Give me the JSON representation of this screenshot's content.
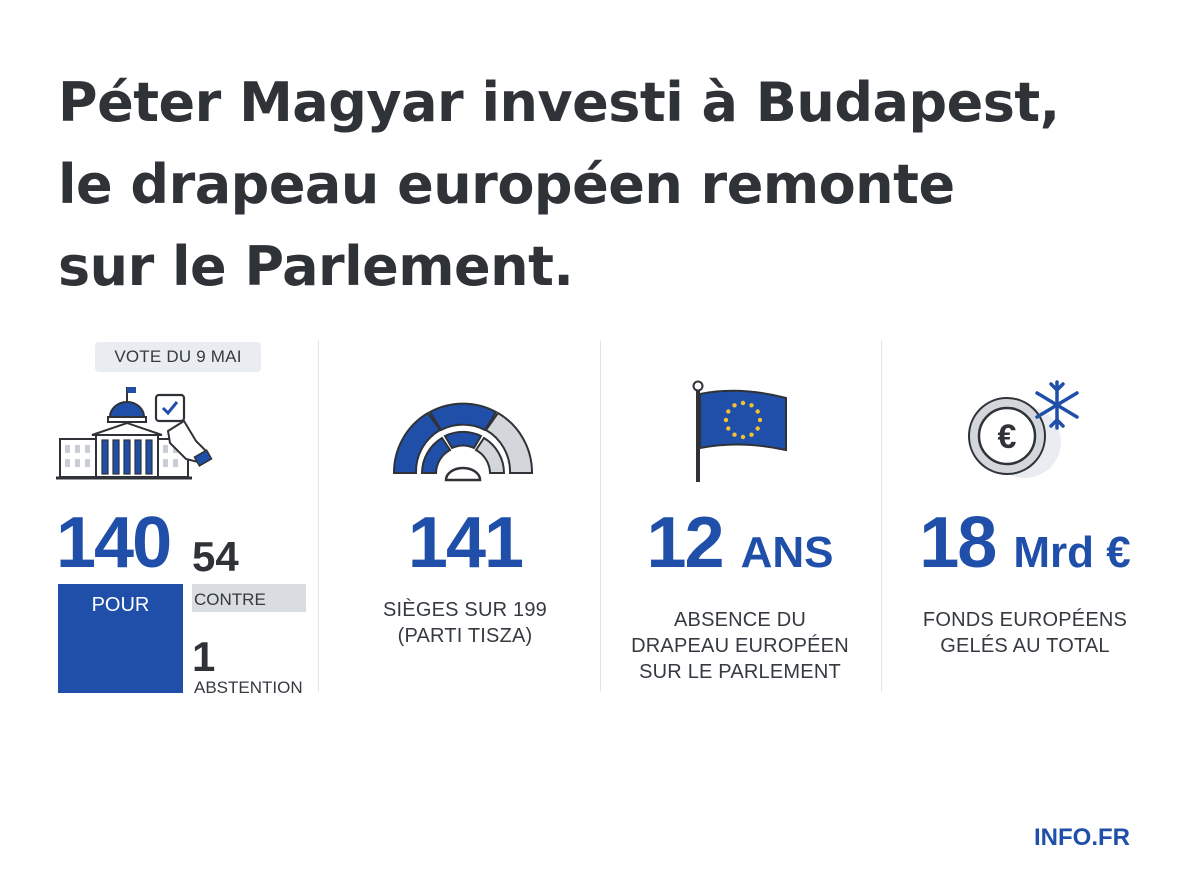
{
  "headline": {
    "line1": "Péter Magyar investi à Budapest,",
    "line2": "le drapeau européen remonte",
    "line3": "sur le Parlement."
  },
  "vote": {
    "badge": "VOTE DU 9 MAI",
    "pour_count": "140",
    "pour_label": "POUR",
    "contre_count": "54",
    "contre_label": "CONTRE",
    "abstention_count": "1",
    "abstention_label": "ABSTENTION"
  },
  "seats": {
    "number": "141",
    "caption_line1": "SIÈGES SUR 199",
    "caption_line2": "(PARTI TISZA)"
  },
  "flag": {
    "number": "12",
    "unit": "ANS",
    "caption_line1": "ABSENCE DU",
    "caption_line2": "DRAPEAU EUROPÉEN",
    "caption_line3": "SUR LE PARLEMENT"
  },
  "funds": {
    "number": "18",
    "unit": "Mrd €",
    "caption_line1": "FONDS EUROPÉENS",
    "caption_line2": "GELÉS AU TOTAL",
    "icon_symbol": "€"
  },
  "footer": {
    "brand": "INFO.FR"
  },
  "colors": {
    "accent": "#1f4fa8",
    "text": "#2f3338",
    "light": "#d9dce0"
  },
  "icons": [
    "parliament-vote-icon",
    "hemicycle-icon",
    "eu-flag-icon",
    "frozen-euro-icon"
  ]
}
